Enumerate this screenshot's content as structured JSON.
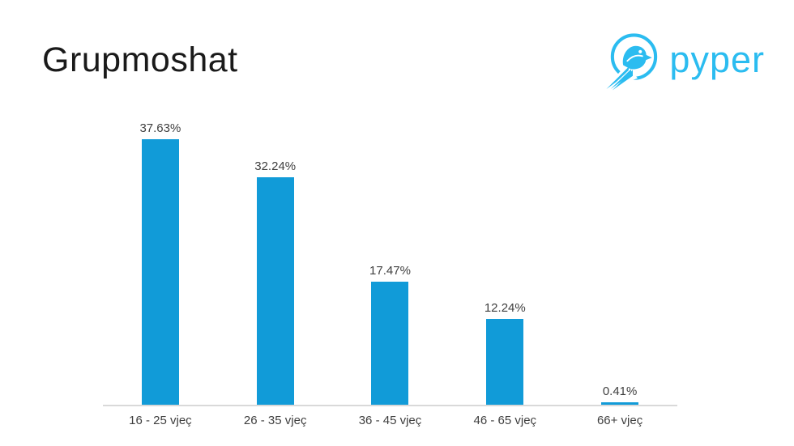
{
  "page": {
    "background": "#ffffff"
  },
  "title": "Grupmoshat",
  "logo": {
    "text": "pyper",
    "icon": "pyper-bird-icon",
    "color": "#2bbcf0"
  },
  "chart_data": {
    "type": "bar",
    "title": "Grupmoshat",
    "categories": [
      "16 - 25 vjeç",
      "26 - 35 vjeç",
      "36 - 45 vjeç",
      "46 - 65 vjeç",
      "66+ vjeç"
    ],
    "values": [
      37.63,
      32.24,
      17.47,
      12.24,
      0.41
    ],
    "value_labels": [
      "37.63%",
      "32.24%",
      "17.47%",
      "12.24%",
      "0.41%"
    ],
    "xlabel": "",
    "ylabel": "",
    "ylim": [
      0,
      41.3
    ],
    "grid": false,
    "legend": false,
    "bar_color": "#119bd8",
    "value_label_color": "#3f3f3f",
    "category_label_color": "#3f3f3f",
    "axis_line_color": "#d9d9d9",
    "title_color": "#1a1a1a"
  }
}
